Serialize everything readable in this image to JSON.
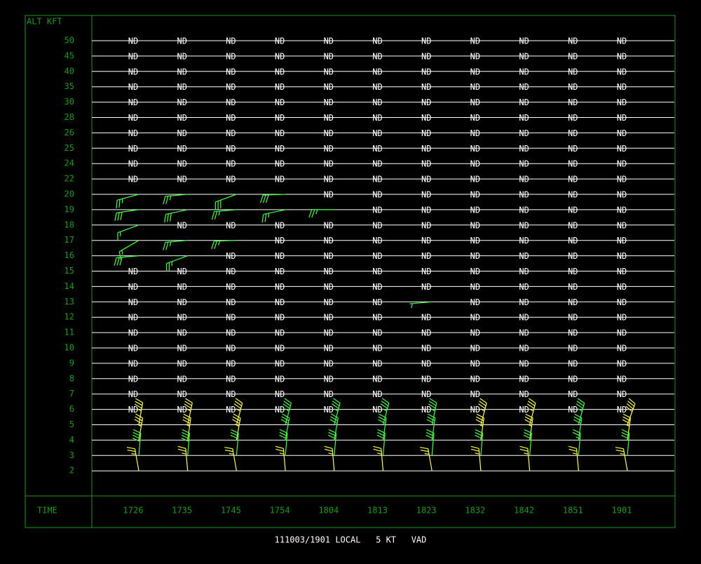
{
  "header": {
    "alt_label": "ALT KFT",
    "time_label": "TIME",
    "footer": "111003/1901 LOCAL   5 KT   VAD"
  },
  "levels": [
    "50",
    "45",
    "40",
    "35",
    "30",
    "28",
    "26",
    "25",
    "24",
    "22",
    "20",
    "19",
    "18",
    "17",
    "16",
    "15",
    "14",
    "13",
    "12",
    "11",
    "10",
    "9",
    "8",
    "7",
    "6",
    "5",
    "4",
    "3",
    "2"
  ],
  "times": [
    "1726",
    "1735",
    "1745",
    "1754",
    "1804",
    "1813",
    "1823",
    "1832",
    "1842",
    "1851",
    "1901"
  ],
  "cells": [
    [
      "ND",
      "ND",
      "ND",
      "ND",
      "ND",
      "ND",
      "ND",
      "ND",
      "ND",
      "ND",
      "ND"
    ],
    [
      "ND",
      "ND",
      "ND",
      "ND",
      "ND",
      "ND",
      "ND",
      "ND",
      "ND",
      "ND",
      "ND"
    ],
    [
      "ND",
      "ND",
      "ND",
      "ND",
      "ND",
      "ND",
      "ND",
      "ND",
      "ND",
      "ND",
      "ND"
    ],
    [
      "ND",
      "ND",
      "ND",
      "ND",
      "ND",
      "ND",
      "ND",
      "ND",
      "ND",
      "ND",
      "ND"
    ],
    [
      "ND",
      "ND",
      "ND",
      "ND",
      "ND",
      "ND",
      "ND",
      "ND",
      "ND",
      "ND",
      "ND"
    ],
    [
      "ND",
      "ND",
      "ND",
      "ND",
      "ND",
      "ND",
      "ND",
      "ND",
      "ND",
      "ND",
      "ND"
    ],
    [
      "ND",
      "ND",
      "ND",
      "ND",
      "ND",
      "ND",
      "ND",
      "ND",
      "ND",
      "ND",
      "ND"
    ],
    [
      "ND",
      "ND",
      "ND",
      "ND",
      "ND",
      "ND",
      "ND",
      "ND",
      "ND",
      "ND",
      "ND"
    ],
    [
      "ND",
      "ND",
      "ND",
      "ND",
      "ND",
      "ND",
      "ND",
      "ND",
      "ND",
      "ND",
      "ND"
    ],
    [
      "ND",
      "ND",
      "ND",
      "ND",
      "ND",
      "ND",
      "ND",
      "ND",
      "ND",
      "ND",
      "ND"
    ],
    [
      {
        "dir": 255,
        "kt": 25,
        "color": "#40ff40"
      },
      {
        "dir": 265,
        "kt": 25,
        "color": "#40ff40"
      },
      {
        "dir": 250,
        "kt": 30,
        "color": "#40ff40"
      },
      {
        "dir": 268,
        "kt": 30,
        "color": "#40ff40"
      },
      "ND",
      "ND",
      "ND",
      "ND",
      "ND",
      "ND",
      "ND"
    ],
    [
      {
        "dir": 262,
        "kt": 30,
        "color": "#40ff40"
      },
      {
        "dir": 258,
        "kt": 30,
        "color": "#40ff40"
      },
      {
        "dir": 265,
        "kt": 25,
        "color": "#40ff40"
      },
      {
        "dir": 258,
        "kt": 25,
        "color": "#40ff40"
      },
      {
        "dir": 270,
        "kt": 25,
        "color": "#40ff40"
      },
      "ND",
      "ND",
      "ND",
      "ND",
      "ND",
      "ND"
    ],
    [
      {
        "dir": 250,
        "kt": 15,
        "color": "#40ff40"
      },
      "ND",
      "ND",
      "ND",
      "ND",
      "ND",
      "ND",
      "ND",
      "ND",
      "ND",
      "ND"
    ],
    [
      {
        "dir": 240,
        "kt": 15,
        "color": "#40ff40"
      },
      {
        "dir": 265,
        "kt": 25,
        "color": "#40ff40"
      },
      {
        "dir": 268,
        "kt": 25,
        "color": "#40ff40"
      },
      "ND",
      "ND",
      "ND",
      "ND",
      "ND",
      "ND",
      "ND",
      "ND"
    ],
    [
      {
        "dir": 265,
        "kt": 30,
        "color": "#40ff40"
      },
      {
        "dir": 250,
        "kt": 25,
        "color": "#40ff40"
      },
      "ND",
      "ND",
      "ND",
      "ND",
      "ND",
      "ND",
      "ND",
      "ND",
      "ND"
    ],
    [
      "ND",
      "ND",
      "ND",
      "ND",
      "ND",
      "ND",
      "ND",
      "ND",
      "ND",
      "ND",
      "ND"
    ],
    [
      "ND",
      "ND",
      "ND",
      "ND",
      "ND",
      "ND",
      "ND",
      "ND",
      "ND",
      "ND",
      "ND"
    ],
    [
      "ND",
      "ND",
      "ND",
      "ND",
      "ND",
      "ND",
      {
        "dir": 265,
        "kt": 5,
        "color": "#40ff40"
      },
      "ND",
      "ND",
      "ND",
      "ND"
    ],
    [
      "ND",
      "ND",
      "ND",
      "ND",
      "ND",
      "ND",
      "ND",
      "ND",
      "ND",
      "ND",
      "ND"
    ],
    [
      "ND",
      "ND",
      "ND",
      "ND",
      "ND",
      "ND",
      "ND",
      "ND",
      "ND",
      "ND",
      "ND"
    ],
    [
      "ND",
      "ND",
      "ND",
      "ND",
      "ND",
      "ND",
      "ND",
      "ND",
      "ND",
      "ND",
      "ND"
    ],
    [
      "ND",
      "ND",
      "ND",
      "ND",
      "ND",
      "ND",
      "ND",
      "ND",
      "ND",
      "ND",
      "ND"
    ],
    [
      "ND",
      "ND",
      "ND",
      "ND",
      "ND",
      "ND",
      "ND",
      "ND",
      "ND",
      "ND",
      "ND"
    ],
    [
      "ND",
      "ND",
      "ND",
      "ND",
      "ND",
      "ND",
      "ND",
      "ND",
      "ND",
      "ND",
      "ND"
    ],
    [
      "ND",
      "ND",
      "ND",
      "ND",
      "ND",
      "ND",
      "ND",
      "ND",
      "ND",
      "ND",
      "ND"
    ],
    [
      {
        "dir": 10,
        "kt": 35,
        "color": "#ffff40"
      },
      {
        "dir": 12,
        "kt": 35,
        "color": "#ffff40"
      },
      {
        "dir": 15,
        "kt": 35,
        "color": "#ffff40"
      },
      {
        "dir": 15,
        "kt": 35,
        "color": "#40ff40"
      },
      {
        "dir": 15,
        "kt": 35,
        "color": "#40ff40"
      },
      {
        "dir": 15,
        "kt": 35,
        "color": "#40ff40"
      },
      {
        "dir": 12,
        "kt": 35,
        "color": "#40ff40"
      },
      {
        "dir": 15,
        "kt": 35,
        "color": "#ffff40"
      },
      {
        "dir": 15,
        "kt": 35,
        "color": "#ffff40"
      },
      {
        "dir": 15,
        "kt": 35,
        "color": "#40ff40"
      },
      {
        "dir": 20,
        "kt": 40,
        "color": "#ffff40"
      }
    ],
    [
      {
        "dir": 10,
        "kt": 35,
        "color": "#ffff40"
      },
      {
        "dir": 8,
        "kt": 35,
        "color": "#ffff40"
      },
      {
        "dir": 10,
        "kt": 35,
        "color": "#ffff40"
      },
      {
        "dir": 10,
        "kt": 30,
        "color": "#40ff40"
      },
      {
        "dir": 10,
        "kt": 30,
        "color": "#40ff40"
      },
      {
        "dir": 8,
        "kt": 30,
        "color": "#40ff40"
      },
      {
        "dir": 8,
        "kt": 30,
        "color": "#40ff40"
      },
      {
        "dir": 8,
        "kt": 35,
        "color": "#ffff40"
      },
      {
        "dir": 8,
        "kt": 35,
        "color": "#ffff40"
      },
      {
        "dir": 8,
        "kt": 30,
        "color": "#40ff40"
      },
      {
        "dir": 8,
        "kt": 35,
        "color": "#ffff40"
      }
    ],
    [
      {
        "dir": 5,
        "kt": 40,
        "color": "#40ff40"
      },
      {
        "dir": 5,
        "kt": 40,
        "color": "#40ff40"
      },
      {
        "dir": 5,
        "kt": 30,
        "color": "#40ff40"
      },
      {
        "dir": 5,
        "kt": 30,
        "color": "#40ff40"
      },
      {
        "dir": 5,
        "kt": 30,
        "color": "#40ff40"
      },
      {
        "dir": 5,
        "kt": 30,
        "color": "#40ff40"
      },
      {
        "dir": 5,
        "kt": 30,
        "color": "#40ff40"
      },
      {
        "dir": 5,
        "kt": 30,
        "color": "#40ff40"
      },
      {
        "dir": 5,
        "kt": 30,
        "color": "#40ff40"
      },
      {
        "dir": 5,
        "kt": 25,
        "color": "#40ff40"
      },
      {
        "dir": 5,
        "kt": 30,
        "color": "#40ff40"
      }
    ],
    [
      {
        "dir": 350,
        "kt": 25,
        "color": "#ffff40"
      },
      {
        "dir": 355,
        "kt": 25,
        "color": "#ffff40"
      },
      {
        "dir": 350,
        "kt": 25,
        "color": "#ffff40"
      },
      {
        "dir": 355,
        "kt": 25,
        "color": "#ffff40"
      },
      {
        "dir": 355,
        "kt": 25,
        "color": "#ffff40"
      },
      {
        "dir": 355,
        "kt": 25,
        "color": "#ffff40"
      },
      {
        "dir": 350,
        "kt": 25,
        "color": "#ffff40"
      },
      {
        "dir": 355,
        "kt": 25,
        "color": "#ffff40"
      },
      {
        "dir": 355,
        "kt": 25,
        "color": "#ffff40"
      },
      {
        "dir": 355,
        "kt": 25,
        "color": "#ffff40"
      },
      {
        "dir": 350,
        "kt": 25,
        "color": "#ffff40"
      }
    ]
  ]
}
